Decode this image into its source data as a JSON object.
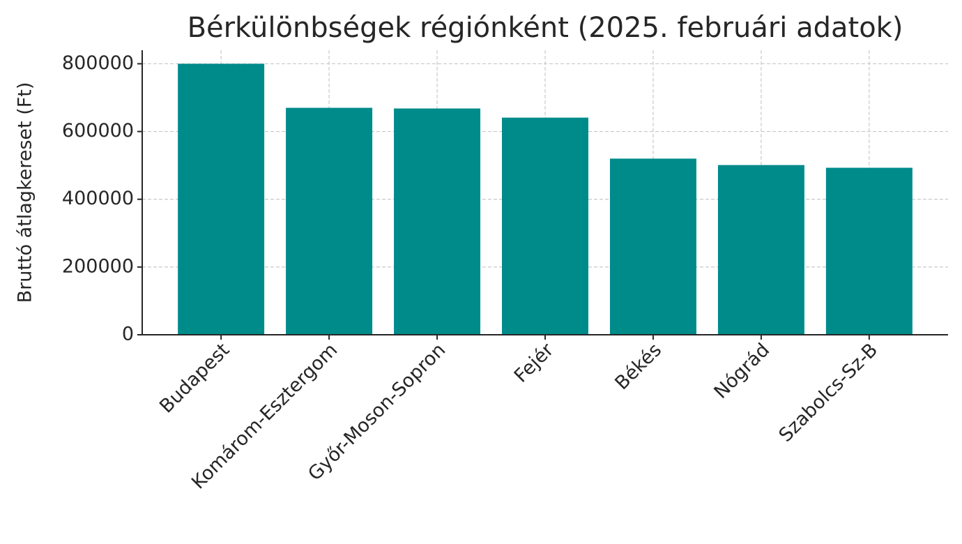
{
  "chart_data": {
    "type": "bar",
    "title": "Bérkülönbségek régiónként (2025. februári adatok)",
    "y_label": "Bruttó átlagkereset (Ft)",
    "categories": [
      "Budapest",
      "Komárom-Esztergom",
      "Győr-Moson-Sopron",
      "Fejér",
      "Békés",
      "Nógrád",
      "Szabolcs-Sz-B"
    ],
    "values": [
      800000,
      670000,
      668000,
      641000,
      520000,
      501000,
      493000
    ],
    "color": "#008b8b",
    "ylim": [
      0,
      840000
    ],
    "yticks": [
      0,
      200000,
      400000,
      600000,
      800000
    ],
    "grid": true
  }
}
